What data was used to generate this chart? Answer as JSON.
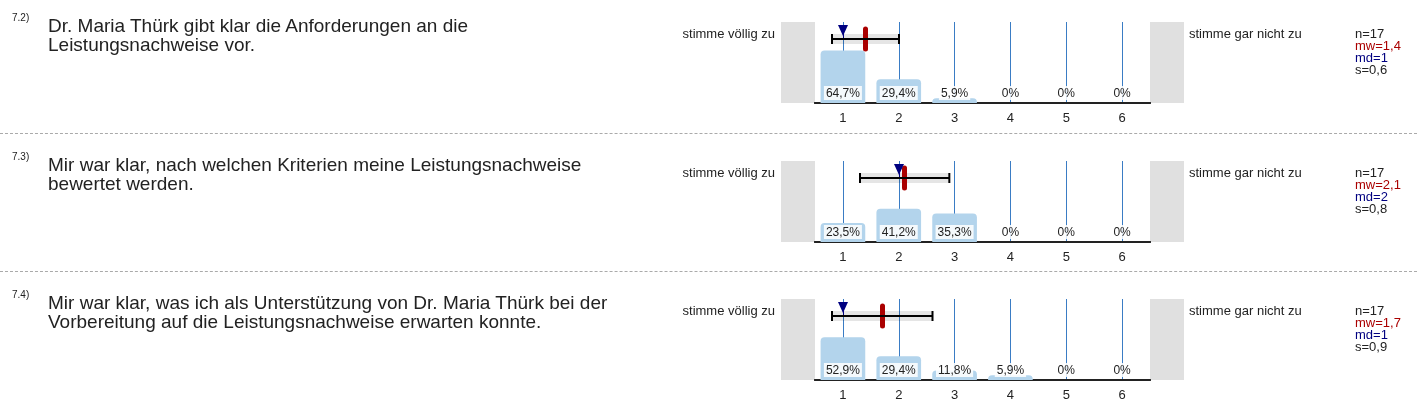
{
  "chart_data": [
    {
      "type": "bar",
      "x": [
        1,
        2,
        3,
        4,
        5,
        6
      ],
      "xlim": [
        0.5,
        6.5
      ],
      "xticks": [
        1,
        2,
        3,
        4,
        5,
        6
      ],
      "ylim": [
        0,
        100
      ],
      "tick_labels": "x",
      "grid": "x",
      "series": [
        {
          "color": "#b3d4ec",
          "values": [
            64.7,
            29.4,
            5.9,
            0,
            0,
            0
          ],
          "value_labels": [
            "64,7%",
            "29,4%",
            "5,9%",
            "0%",
            "0%",
            "0%"
          ]
        }
      ],
      "ref_lines": [
        {
          "axis": "x",
          "value": 1.4,
          "color": "#aa0000"
        },
        {
          "axis": "x",
          "value": 1,
          "color": "#000080"
        }
      ],
      "bands": [
        {
          "axis": "x",
          "from": 0.8,
          "to": 2.0,
          "color": "#000000"
        }
      ],
      "annotations": [
        "7.2)",
        "Dr. Maria Thürk gibt klar die Anforderungen an die Leistungsnachweise vor.",
        "stimme völlig zu",
        "stimme gar nicht zu",
        "n=17",
        "mw=1,4",
        "md=1",
        "s=0,6"
      ]
    },
    {
      "type": "bar",
      "x": [
        1,
        2,
        3,
        4,
        5,
        6
      ],
      "xlim": [
        0.5,
        6.5
      ],
      "xticks": [
        1,
        2,
        3,
        4,
        5,
        6
      ],
      "ylim": [
        0,
        100
      ],
      "tick_labels": "x",
      "grid": "x",
      "series": [
        {
          "color": "#b3d4ec",
          "values": [
            23.5,
            41.2,
            35.3,
            0,
            0,
            0
          ],
          "value_labels": [
            "23,5%",
            "41,2%",
            "35,3%",
            "0%",
            "0%",
            "0%"
          ]
        }
      ],
      "ref_lines": [
        {
          "axis": "x",
          "value": 2.1,
          "color": "#aa0000"
        },
        {
          "axis": "x",
          "value": 2,
          "color": "#000080"
        }
      ],
      "bands": [
        {
          "axis": "x",
          "from": 1.3,
          "to": 2.9,
          "color": "#000000"
        }
      ],
      "annotations": [
        "7.3)",
        "Mir war klar, nach welchen Kriterien meine Leistungsnachweise bewertet werden.",
        "stimme völlig zu",
        "stimme gar nicht zu",
        "n=17",
        "mw=2,1",
        "md=2",
        "s=0,8"
      ]
    },
    {
      "type": "bar",
      "x": [
        1,
        2,
        3,
        4,
        5,
        6
      ],
      "xlim": [
        0.5,
        6.5
      ],
      "xticks": [
        1,
        2,
        3,
        4,
        5,
        6
      ],
      "ylim": [
        0,
        100
      ],
      "tick_labels": "x",
      "grid": "x",
      "series": [
        {
          "color": "#b3d4ec",
          "values": [
            52.9,
            29.4,
            11.8,
            5.9,
            0,
            0
          ],
          "value_labels": [
            "52,9%",
            "29,4%",
            "11,8%",
            "5,9%",
            "0%",
            "0%"
          ]
        }
      ],
      "ref_lines": [
        {
          "axis": "x",
          "value": 1.7,
          "color": "#aa0000"
        },
        {
          "axis": "x",
          "value": 1,
          "color": "#000080"
        }
      ],
      "bands": [
        {
          "axis": "x",
          "from": 0.8,
          "to": 2.6,
          "color": "#000000"
        }
      ],
      "annotations": [
        "7.4)",
        "Mir war klar, was ich als Unterstützung von Dr. Maria Thürk bei der Vorbereitung auf die Leistungsnachweise erwarten konnte.",
        "stimme völlig zu",
        "stimme gar nicht zu",
        "n=17",
        "mw=1,7",
        "md=1",
        "s=0,9"
      ]
    }
  ]
}
